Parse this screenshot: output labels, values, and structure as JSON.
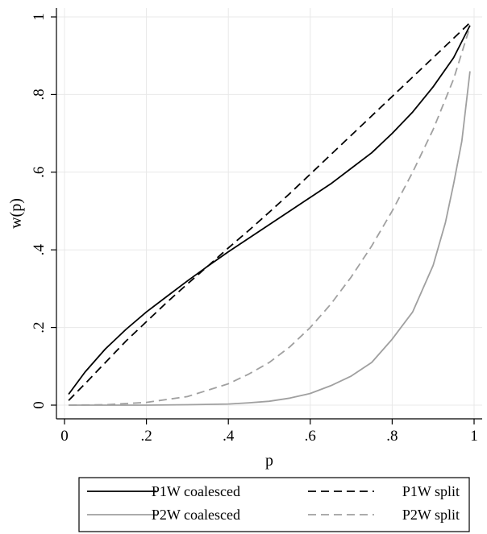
{
  "chart_data": {
    "type": "line",
    "xlabel": "p",
    "ylabel": "w(p)",
    "xlim": [
      0,
      1
    ],
    "ylim": [
      0,
      1
    ],
    "x_ticks": [
      {
        "value": 0,
        "label": "0"
      },
      {
        "value": 0.2,
        "label": ".2"
      },
      {
        "value": 0.4,
        "label": ".4"
      },
      {
        "value": 0.6,
        "label": ".6"
      },
      {
        "value": 0.8,
        "label": ".8"
      },
      {
        "value": 1,
        "label": "1"
      }
    ],
    "y_ticks": [
      {
        "value": 0,
        "label": "0"
      },
      {
        "value": 0.2,
        "label": ".2"
      },
      {
        "value": 0.4,
        "label": ".4"
      },
      {
        "value": 0.6,
        "label": ".6"
      },
      {
        "value": 0.8,
        "label": ".8"
      },
      {
        "value": 1,
        "label": "1"
      }
    ],
    "grid": true,
    "legend_position": "bottom",
    "series": [
      {
        "name": "P1W coalesced",
        "color": "#000000",
        "dash": "solid",
        "x": [
          0.01,
          0.05,
          0.1,
          0.15,
          0.2,
          0.25,
          0.3,
          0.35,
          0.4,
          0.45,
          0.5,
          0.55,
          0.6,
          0.65,
          0.7,
          0.75,
          0.8,
          0.85,
          0.9,
          0.95,
          0.99
        ],
        "y": [
          0.028,
          0.085,
          0.145,
          0.195,
          0.24,
          0.28,
          0.32,
          0.358,
          0.395,
          0.43,
          0.465,
          0.5,
          0.535,
          0.57,
          0.61,
          0.65,
          0.7,
          0.755,
          0.82,
          0.895,
          0.978
        ]
      },
      {
        "name": "P1W split",
        "color": "#000000",
        "dash": "dashed",
        "x": [
          0.01,
          0.05,
          0.1,
          0.15,
          0.2,
          0.25,
          0.3,
          0.35,
          0.4,
          0.45,
          0.5,
          0.55,
          0.6,
          0.65,
          0.7,
          0.75,
          0.8,
          0.85,
          0.9,
          0.95,
          0.99
        ],
        "y": [
          0.012,
          0.055,
          0.11,
          0.165,
          0.215,
          0.265,
          0.312,
          0.358,
          0.405,
          0.45,
          0.497,
          0.545,
          0.595,
          0.645,
          0.695,
          0.745,
          0.795,
          0.845,
          0.895,
          0.945,
          0.985
        ]
      },
      {
        "name": "P2W coalesced",
        "color": "#a0a0a0",
        "dash": "solid",
        "x": [
          0.01,
          0.1,
          0.2,
          0.3,
          0.4,
          0.45,
          0.5,
          0.55,
          0.6,
          0.65,
          0.7,
          0.75,
          0.8,
          0.85,
          0.9,
          0.93,
          0.95,
          0.97,
          0.99
        ],
        "y": [
          0.0,
          0.0,
          0.0,
          0.001,
          0.003,
          0.006,
          0.01,
          0.018,
          0.03,
          0.05,
          0.075,
          0.11,
          0.17,
          0.24,
          0.36,
          0.47,
          0.57,
          0.68,
          0.86
        ]
      },
      {
        "name": "P2W split",
        "color": "#a0a0a0",
        "dash": "dashed",
        "x": [
          0.01,
          0.1,
          0.2,
          0.3,
          0.4,
          0.45,
          0.5,
          0.55,
          0.6,
          0.65,
          0.7,
          0.75,
          0.8,
          0.85,
          0.9,
          0.95,
          0.99
        ],
        "y": [
          0.0,
          0.001,
          0.007,
          0.022,
          0.055,
          0.08,
          0.11,
          0.15,
          0.2,
          0.26,
          0.33,
          0.41,
          0.5,
          0.6,
          0.71,
          0.84,
          0.975
        ]
      }
    ]
  }
}
